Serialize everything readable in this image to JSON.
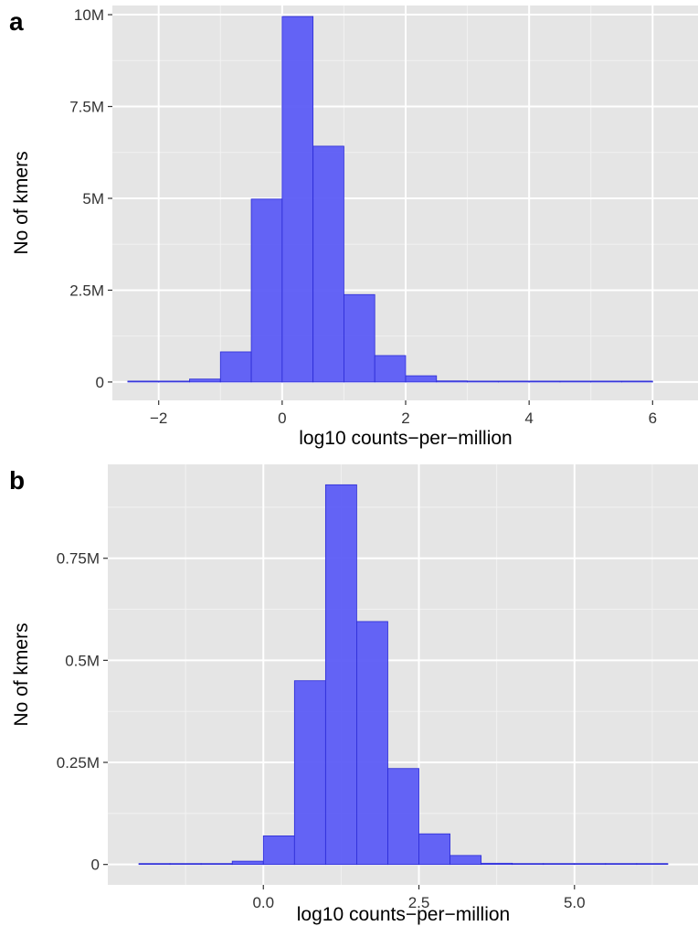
{
  "chart_data": [
    {
      "panel_label": "a",
      "type": "bar",
      "subtype": "histogram",
      "xlabel": "log10 counts−per−million",
      "ylabel": "No of kmers",
      "xlim": [
        -2.75,
        6.75
      ],
      "ylim": [
        -0.5,
        10.25
      ],
      "x_ticks": [
        -2,
        0,
        2,
        4,
        6
      ],
      "x_tick_labels": [
        "−2",
        "0",
        "2",
        "4",
        "6"
      ],
      "y_ticks": [
        0,
        2.5,
        5,
        7.5,
        10
      ],
      "y_tick_labels": [
        "0",
        "2.5M",
        "5M",
        "7.5M",
        "10M"
      ],
      "y_unit": "millions of kmers",
      "bin_width": 0.5,
      "bins_start": [
        -2.5,
        -2.0,
        -1.5,
        -1.0,
        -0.5,
        0.0,
        0.5,
        1.0,
        1.5,
        2.0,
        2.5,
        3.0,
        3.5,
        4.0,
        4.5,
        5.0,
        5.5
      ],
      "values": [
        0.01,
        0.02,
        0.08,
        0.82,
        4.98,
        9.95,
        6.42,
        2.38,
        0.72,
        0.17,
        0.03,
        0.01,
        0.01,
        0.01,
        0.01,
        0.01,
        0.01
      ],
      "grid": true,
      "bar_color": "#5c5cf5",
      "bar_edge_color": "#2b2bd6",
      "panel_bg": "#e5e5e5"
    },
    {
      "panel_label": "b",
      "type": "bar",
      "subtype": "histogram",
      "xlabel": "log10 counts−per−million",
      "ylabel": "No of kmers",
      "xlim": [
        -2.5,
        7.0
      ],
      "ylim": [
        -0.05,
        0.98
      ],
      "x_ticks": [
        0.0,
        2.5,
        5.0
      ],
      "x_tick_labels": [
        "0.0",
        "2.5",
        "5.0"
      ],
      "y_ticks": [
        0,
        0.25,
        0.5,
        0.75
      ],
      "y_tick_labels": [
        "0",
        "0.25M",
        "0.5M",
        "0.75M"
      ],
      "y_unit": "millions of kmers",
      "bin_width": 0.5,
      "bins_start": [
        -2.0,
        -1.5,
        -1.0,
        -0.5,
        0.0,
        0.5,
        1.0,
        1.5,
        2.0,
        2.5,
        3.0,
        3.5,
        4.0,
        4.5,
        5.0,
        5.5,
        6.0
      ],
      "values": [
        0.001,
        0.002,
        0.002,
        0.008,
        0.07,
        0.45,
        0.93,
        0.595,
        0.235,
        0.075,
        0.022,
        0.003,
        0.002,
        0.002,
        0.002,
        0.002,
        0.002
      ],
      "grid": true,
      "bar_color": "#5c5cf5",
      "bar_edge_color": "#2b2bd6",
      "panel_bg": "#e5e5e5"
    }
  ]
}
